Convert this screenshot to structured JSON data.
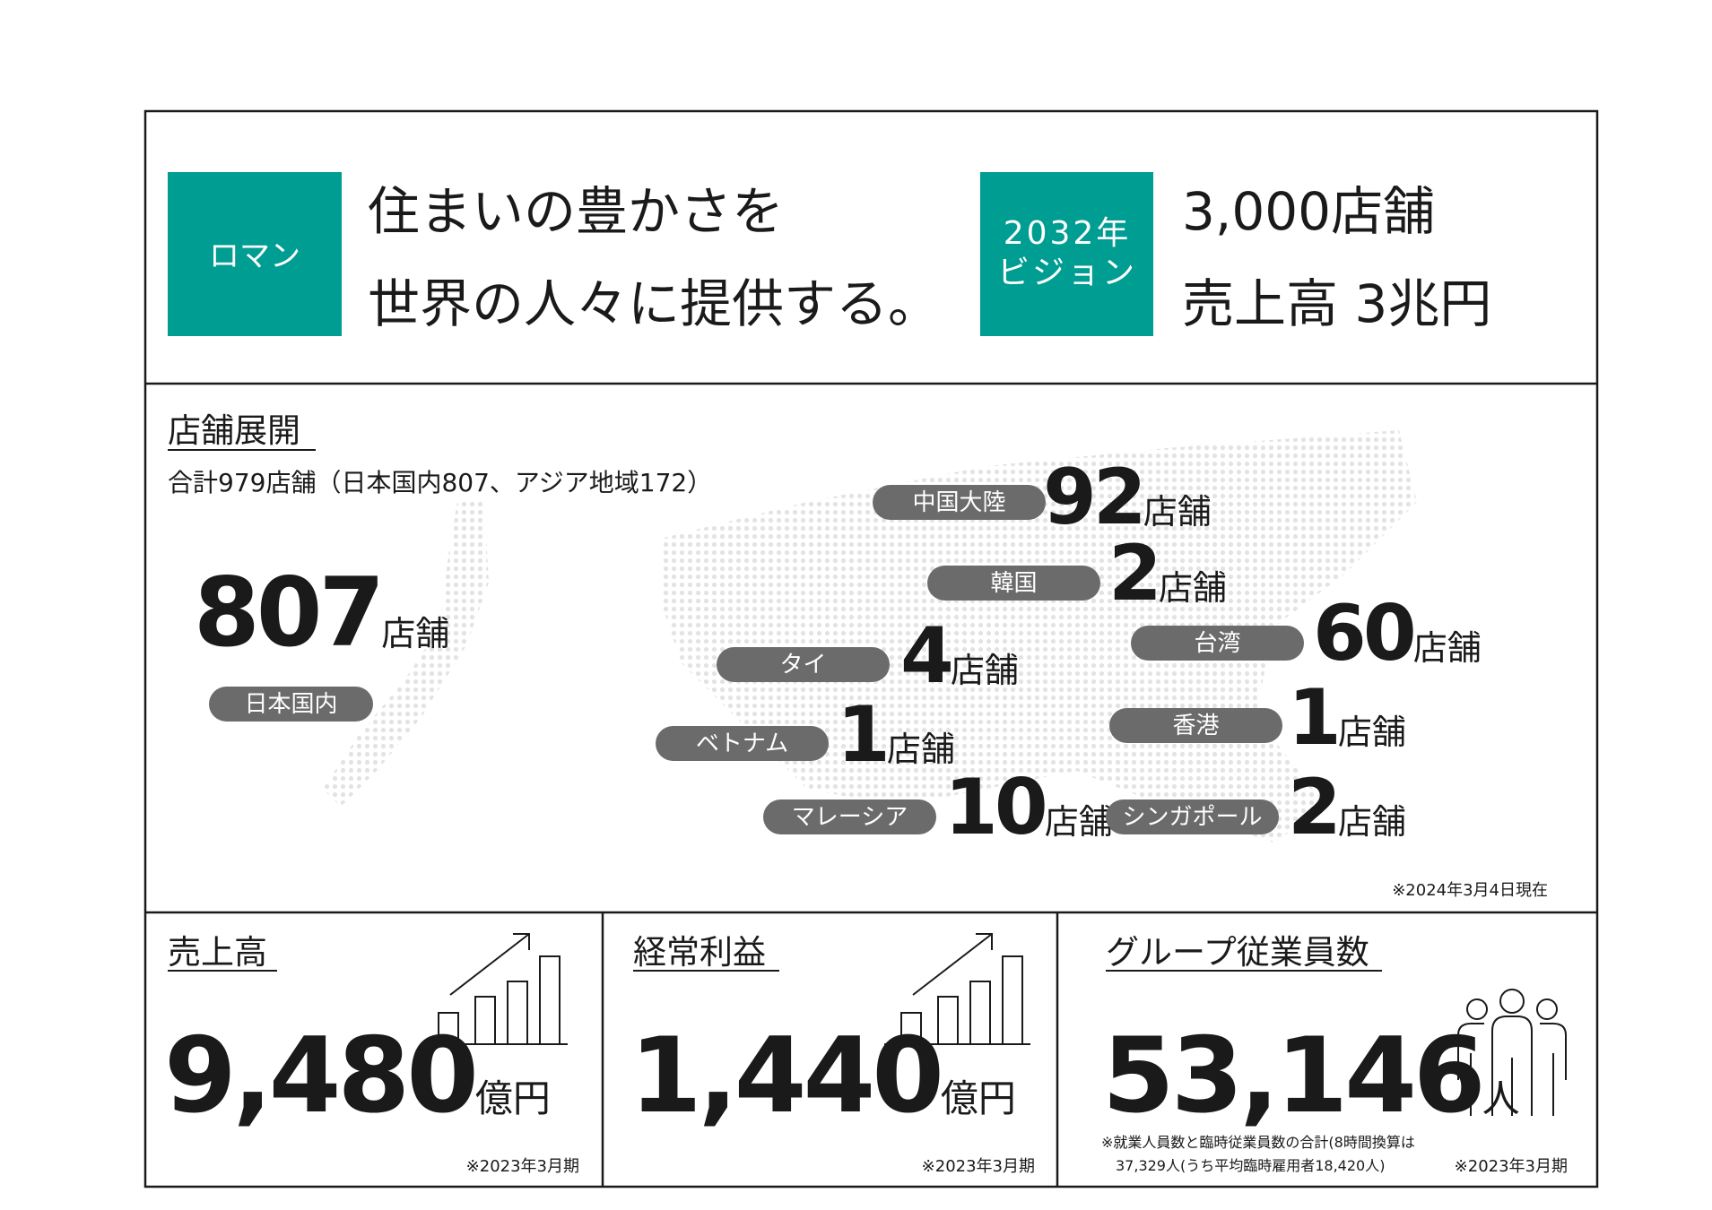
{
  "mission": {
    "badge": "ロマン",
    "lines": [
      "住まいの豊かさを",
      "世界の人々に提供する。"
    ]
  },
  "vision": {
    "badge": [
      "2032年",
      "ビジョン"
    ],
    "lines": [
      "3,000店舗",
      "売上高 3兆円"
    ]
  },
  "stores": {
    "title": "店舗展開",
    "summary": "合計979店舗（日本国内807、アジア地域172）",
    "japan": {
      "label": "日本国内",
      "count": "807",
      "unit": "店舗"
    },
    "regions": [
      {
        "label": "中国大陸",
        "count": "92",
        "unit": "店舗"
      },
      {
        "label": "韓国",
        "count": "2",
        "unit": "店舗"
      },
      {
        "label": "台湾",
        "count": "60",
        "unit": "店舗"
      },
      {
        "label": "タイ",
        "count": "4",
        "unit": "店舗"
      },
      {
        "label": "香港",
        "count": "1",
        "unit": "店舗"
      },
      {
        "label": "ベトナム",
        "count": "1",
        "unit": "店舗"
      },
      {
        "label": "マレーシア",
        "count": "10",
        "unit": "店舗"
      },
      {
        "label": "シンガポール",
        "count": "2",
        "unit": "店舗"
      }
    ],
    "note": "※2024年3月4日現在"
  },
  "kpis": [
    {
      "title": "売上高",
      "value": "9,480",
      "unit": "億円",
      "note": "※2023年3月期"
    },
    {
      "title": "経常利益",
      "value": "1,440",
      "unit": "億円",
      "note": "※2023年3月期"
    },
    {
      "title": "グループ従業員数",
      "value": "53,146",
      "unit": "人",
      "note": "※2023年3月期",
      "detail": [
        "※就業人員数と臨時従業員数の合計(8時間換算は",
        "37,329人(うち平均臨時雇用者18,420人)"
      ]
    }
  ]
}
